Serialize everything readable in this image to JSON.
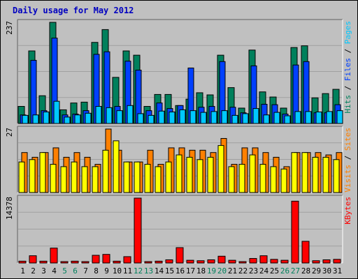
{
  "chart_data": {
    "type": "bar",
    "title": "Daily usage for May 2012",
    "colors": {
      "background": "#c0c0c0",
      "plot_background": "#c0c0c0",
      "title": "#0000c0",
      "hits": "#00805c",
      "files": "#0040ff",
      "pages": "#00c8ff",
      "visits": "#ff8000",
      "sites": "#ffff00",
      "kbytes": "#ff0000",
      "weekend_label": "#00805c",
      "weekday_label": "#000000"
    },
    "days": [
      "1",
      "2",
      "3",
      "4",
      "5",
      "6",
      "7",
      "8",
      "9",
      "10",
      "11",
      "12",
      "13",
      "14",
      "15",
      "16",
      "17",
      "18",
      "19",
      "20",
      "21",
      "22",
      "23",
      "24",
      "25",
      "26",
      "27",
      "28",
      "29",
      "30",
      "31"
    ],
    "weekend_days": [
      "5",
      "6",
      "12",
      "13",
      "19",
      "20",
      "26",
      "27"
    ],
    "panels": [
      {
        "id": "hits-files-pages",
        "ymax_label": "237",
        "ymax": 237,
        "legend": [
          {
            "text": "Hits",
            "color": "#00805c"
          },
          {
            "text": " / ",
            "color": "#000000"
          },
          {
            "text": "Files",
            "color": "#0040ff"
          },
          {
            "text": " / ",
            "color": "#000000"
          },
          {
            "text": "Pages",
            "color": "#00c8ff"
          }
        ],
        "series": [
          {
            "name": "Hits",
            "color": "#00805c",
            "values": [
              40,
              170,
              65,
              237,
              32,
              48,
              50,
              190,
              220,
              108,
              170,
              160,
              40,
              68,
              68,
              42,
              57,
              72,
              67,
              160,
              84,
              36,
              172,
              74,
              62,
              36,
              178,
              182,
              60,
              70,
              80
            ]
          },
          {
            "name": "Files",
            "color": "#0040ff",
            "values": [
              20,
              148,
              30,
              200,
              20,
              22,
              30,
              162,
              168,
              40,
              146,
              125,
              30,
              48,
              35,
              42,
              130,
              38,
              40,
              145,
              38,
              25,
              135,
              45,
              44,
              22,
              137,
              145,
              25,
              25,
              44
            ]
          },
          {
            "name": "Pages",
            "color": "#00c8ff",
            "values": [
              19,
              20,
              27,
              52,
              15,
              20,
              24,
              40,
              37,
              30,
              42,
              23,
              19,
              29,
              27,
              32,
              30,
              26,
              28,
              30,
              19,
              23,
              35,
              20,
              26,
              18,
              28,
              28,
              27,
              28,
              30
            ]
          }
        ]
      },
      {
        "id": "visits-sites",
        "ymax_label": "27",
        "ymax": 27,
        "legend": [
          {
            "text": "Visits",
            "color": "#ff8000"
          },
          {
            "text": " / ",
            "color": "#000000"
          },
          {
            "text": "Sites",
            "color": "#ff8000"
          }
        ],
        "series": [
          {
            "name": "Visits",
            "color": "#ff8000",
            "values": [
              17,
              15,
              17,
              19,
              15,
              17,
              15,
              12,
              27,
              18,
              13,
              13,
              18,
              12,
              19,
              19,
              18,
              18,
              17,
              23,
              12,
              19,
              19,
              17,
              15,
              11,
              17,
              17,
              17,
              16,
              17
            ]
          },
          {
            "name": "Sites",
            "color": "#ffff00",
            "values": [
              13,
              14,
              17,
              12,
              11,
              13,
              11,
              11,
              18,
              22,
              13,
              13,
              12,
              11,
              13,
              16,
              15,
              14,
              15,
              20,
              11,
              12,
              16,
              12,
              11,
              10,
              17,
              17,
              15,
              15,
              14
            ]
          }
        ]
      },
      {
        "id": "kbytes",
        "ymax_label": "14378",
        "ymax": 14378,
        "legend": [
          {
            "text": "KBytes",
            "color": "#ff0000"
          }
        ],
        "series": [
          {
            "name": "KBytes",
            "color": "#ff0000",
            "values": [
              400,
              1600,
              400,
              3300,
              300,
              400,
              300,
              1700,
              1900,
              400,
              1400,
              14378,
              300,
              400,
              700,
              3400,
              600,
              500,
              700,
              1500,
              600,
              300,
              1000,
              1600,
              800,
              600,
              13700,
              4800,
              500,
              700,
              800
            ]
          }
        ]
      }
    ]
  }
}
